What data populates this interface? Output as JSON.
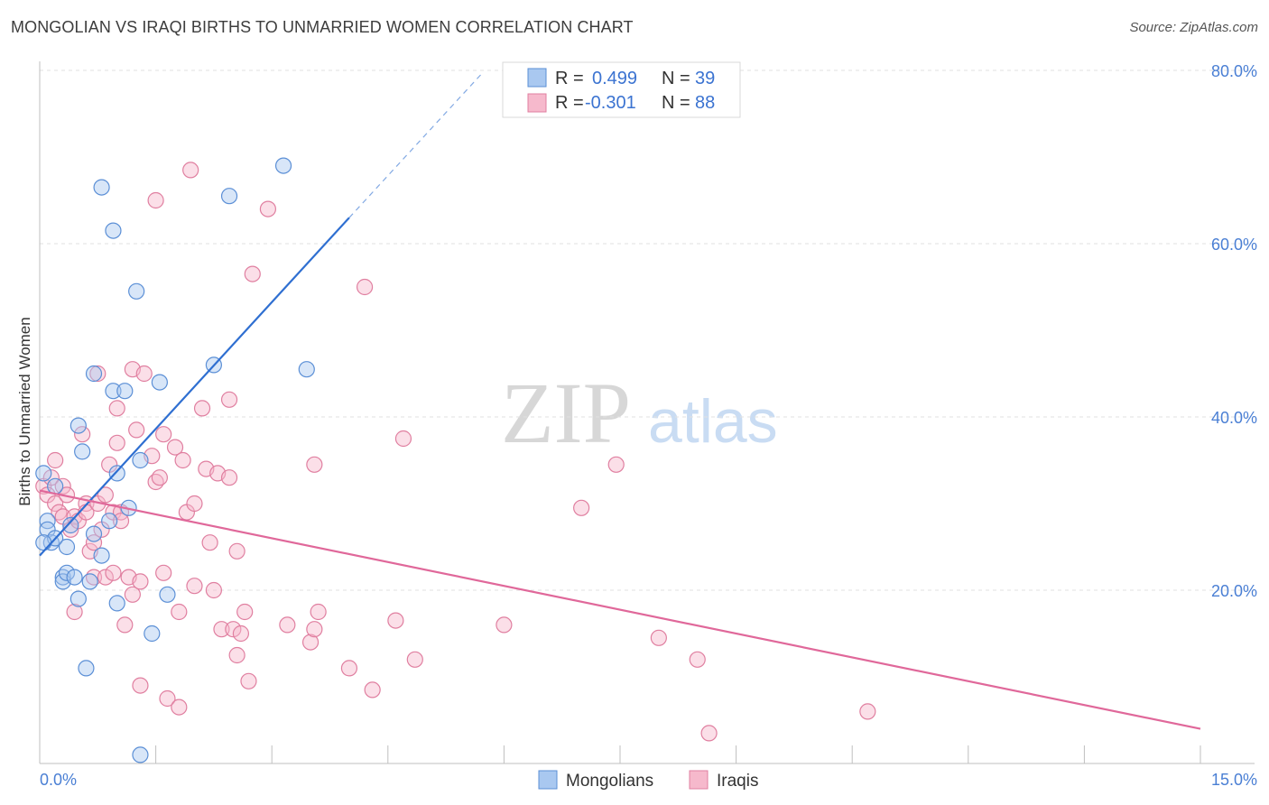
{
  "header": {
    "title": "MONGOLIAN VS IRAQI BIRTHS TO UNMARRIED WOMEN CORRELATION CHART",
    "source": "Source: ZipAtlas.com"
  },
  "watermark": {
    "zip": "ZIP",
    "atlas": "atlas"
  },
  "colors": {
    "mongolians_fill": "#a9c8f0",
    "mongolians_stroke": "#5b8fd6",
    "mongolians_line": "#2f6fd1",
    "iraqis_fill": "#f6b9cc",
    "iraqis_stroke": "#e07fa0",
    "iraqis_line": "#e0689a",
    "tick": "#4a7fd4"
  },
  "legend": {
    "rows": [
      {
        "r_label": "R =",
        "r_value": "0.499",
        "n_label": "N =",
        "n_value": "39"
      },
      {
        "r_label": "R =",
        "r_value": "-0.301",
        "n_label": "N =",
        "n_value": "88"
      }
    ]
  },
  "bottom_legend": {
    "items": [
      "Mongolians",
      "Iraqis"
    ]
  },
  "chart_data": {
    "type": "scatter",
    "title": "MONGOLIAN VS IRAQI BIRTHS TO UNMARRIED WOMEN CORRELATION CHART",
    "xlabel": "",
    "ylabel": "Births to Unmarried Women",
    "xlim": [
      0,
      15
    ],
    "ylim": [
      0,
      80
    ],
    "x_tick_labels": [
      "0.0%",
      "15.0%"
    ],
    "y_ticks": [
      20,
      40,
      60,
      80
    ],
    "y_tick_labels": [
      "20.0%",
      "40.0%",
      "60.0%",
      "80.0%"
    ],
    "grid": true,
    "legend_position": "top-center",
    "series": [
      {
        "name": "Mongolians",
        "r": 0.499,
        "n": 39,
        "trend": {
          "x": [
            0,
            4.0
          ],
          "y": [
            24.0,
            63.0
          ],
          "dashed_to": [
            5.7,
            79.5
          ]
        },
        "points": [
          [
            0.05,
            33.5
          ],
          [
            0.1,
            28
          ],
          [
            0.1,
            27
          ],
          [
            0.15,
            25.5
          ],
          [
            0.2,
            32
          ],
          [
            0.2,
            26
          ],
          [
            0.3,
            21.5
          ],
          [
            0.3,
            21
          ],
          [
            0.35,
            25
          ],
          [
            0.35,
            22
          ],
          [
            0.4,
            27.5
          ],
          [
            0.45,
            21.5
          ],
          [
            0.5,
            19
          ],
          [
            0.5,
            39
          ],
          [
            0.55,
            36
          ],
          [
            0.6,
            11
          ],
          [
            0.65,
            21
          ],
          [
            0.7,
            45
          ],
          [
            0.7,
            26.5
          ],
          [
            0.8,
            66.5
          ],
          [
            0.8,
            24
          ],
          [
            0.9,
            28
          ],
          [
            0.95,
            61.5
          ],
          [
            0.95,
            43
          ],
          [
            1.0,
            18.5
          ],
          [
            1.0,
            33.5
          ],
          [
            1.1,
            43
          ],
          [
            1.15,
            29.5
          ],
          [
            1.25,
            54.5
          ],
          [
            1.3,
            35
          ],
          [
            1.3,
            1
          ],
          [
            1.45,
            15
          ],
          [
            1.55,
            44
          ],
          [
            1.65,
            19.5
          ],
          [
            2.25,
            46
          ],
          [
            2.45,
            65.5
          ],
          [
            3.15,
            69
          ],
          [
            3.45,
            45.5
          ],
          [
            0.05,
            25.5
          ]
        ]
      },
      {
        "name": "Iraqis",
        "r": -0.301,
        "n": 88,
        "trend": {
          "x": [
            0,
            15.0
          ],
          "y": [
            31.5,
            4.0
          ]
        },
        "points": [
          [
            0.05,
            32
          ],
          [
            0.1,
            31
          ],
          [
            0.15,
            33
          ],
          [
            0.2,
            35
          ],
          [
            0.2,
            30
          ],
          [
            0.25,
            29
          ],
          [
            0.3,
            28.5
          ],
          [
            0.3,
            32
          ],
          [
            0.35,
            31
          ],
          [
            0.4,
            27
          ],
          [
            0.45,
            28.5
          ],
          [
            0.45,
            17.5
          ],
          [
            0.5,
            28
          ],
          [
            0.55,
            38
          ],
          [
            0.6,
            30
          ],
          [
            0.6,
            29
          ],
          [
            0.65,
            24.5
          ],
          [
            0.7,
            25.5
          ],
          [
            0.7,
            21.5
          ],
          [
            0.75,
            45
          ],
          [
            0.75,
            30
          ],
          [
            0.8,
            27
          ],
          [
            0.85,
            31
          ],
          [
            0.85,
            21.5
          ],
          [
            0.9,
            34.5
          ],
          [
            0.95,
            29
          ],
          [
            0.95,
            22
          ],
          [
            1.0,
            37
          ],
          [
            1.0,
            41
          ],
          [
            1.05,
            29
          ],
          [
            1.05,
            28
          ],
          [
            1.1,
            16
          ],
          [
            1.15,
            21.5
          ],
          [
            1.2,
            45.5
          ],
          [
            1.2,
            19.5
          ],
          [
            1.25,
            38.5
          ],
          [
            1.3,
            21
          ],
          [
            1.3,
            9
          ],
          [
            1.35,
            45
          ],
          [
            1.45,
            35.5
          ],
          [
            1.5,
            65
          ],
          [
            1.5,
            32.5
          ],
          [
            1.55,
            33
          ],
          [
            1.6,
            38
          ],
          [
            1.6,
            22
          ],
          [
            1.65,
            7.5
          ],
          [
            1.75,
            36.5
          ],
          [
            1.8,
            17.5
          ],
          [
            1.8,
            6.5
          ],
          [
            1.85,
            35
          ],
          [
            1.9,
            29
          ],
          [
            1.95,
            68.5
          ],
          [
            2.0,
            30
          ],
          [
            2.0,
            20.5
          ],
          [
            2.1,
            41
          ],
          [
            2.15,
            34
          ],
          [
            2.2,
            25.5
          ],
          [
            2.25,
            20
          ],
          [
            2.3,
            33.5
          ],
          [
            2.35,
            15.5
          ],
          [
            2.45,
            42
          ],
          [
            2.45,
            33
          ],
          [
            2.5,
            15.5
          ],
          [
            2.55,
            12.5
          ],
          [
            2.55,
            24.5
          ],
          [
            2.6,
            15
          ],
          [
            2.65,
            17.5
          ],
          [
            2.7,
            9.5
          ],
          [
            2.75,
            56.5
          ],
          [
            2.95,
            64
          ],
          [
            3.2,
            16
          ],
          [
            3.5,
            14
          ],
          [
            3.55,
            34.5
          ],
          [
            3.55,
            15.5
          ],
          [
            3.6,
            17.5
          ],
          [
            4.0,
            11
          ],
          [
            4.2,
            55
          ],
          [
            4.3,
            8.5
          ],
          [
            4.6,
            16.5
          ],
          [
            4.7,
            37.5
          ],
          [
            4.85,
            12
          ],
          [
            6.0,
            16
          ],
          [
            7.0,
            29.5
          ],
          [
            7.45,
            34.5
          ],
          [
            8.0,
            14.5
          ],
          [
            8.5,
            12
          ],
          [
            8.65,
            3.5
          ],
          [
            10.7,
            6
          ]
        ]
      }
    ]
  }
}
